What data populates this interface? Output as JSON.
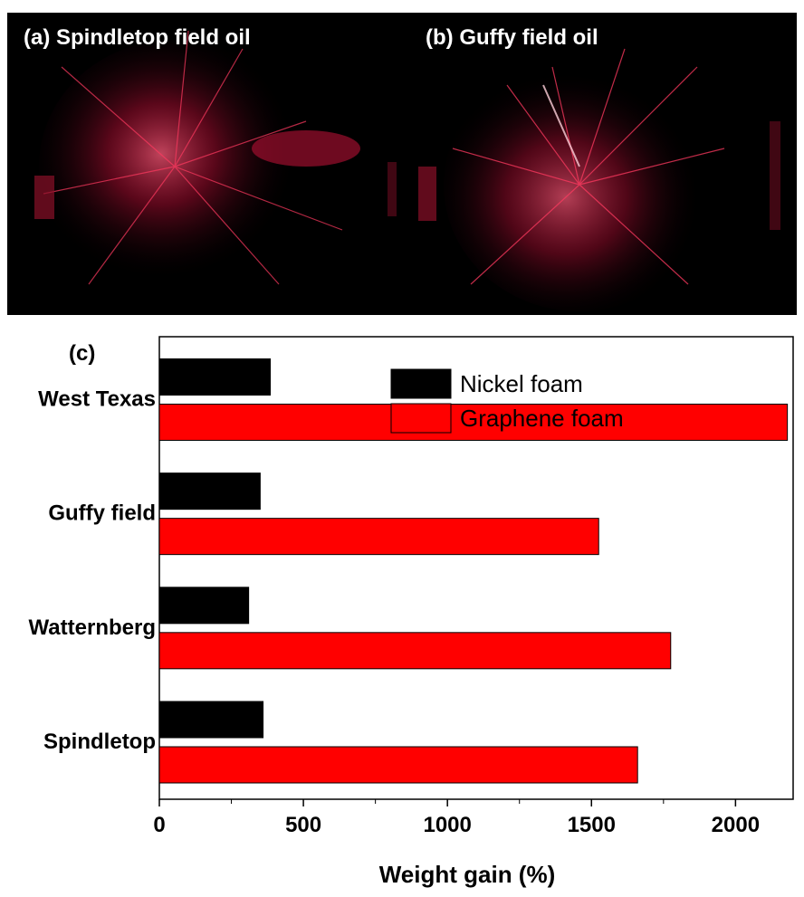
{
  "photos": [
    {
      "label": "(a) Spindletop field oil"
    },
    {
      "label": "(b) Guffy field oil"
    }
  ],
  "colors": {
    "nickel": "#000000",
    "graphene": "#ff0000",
    "photo_background": "#000000",
    "photo_glow": "#ff2a55"
  },
  "chart_data": {
    "type": "bar",
    "orientation": "horizontal",
    "panel_label": "(c)",
    "categories": [
      "Spindletop",
      "Watternberg",
      "Guffy field",
      "West Texas"
    ],
    "series": [
      {
        "name": "Nickel foam",
        "color": "#000000",
        "values": [
          360,
          310,
          350,
          385
        ]
      },
      {
        "name": "Graphene foam",
        "color": "#ff0000",
        "values": [
          1660,
          1775,
          1525,
          2180
        ]
      }
    ],
    "xlabel": "Weight gain (%)",
    "ylabel": "",
    "xticks": [
      0,
      500,
      1000,
      1500,
      2000
    ],
    "xlim": [
      0,
      2200
    ],
    "grid": false,
    "legend_position": "top-right"
  }
}
